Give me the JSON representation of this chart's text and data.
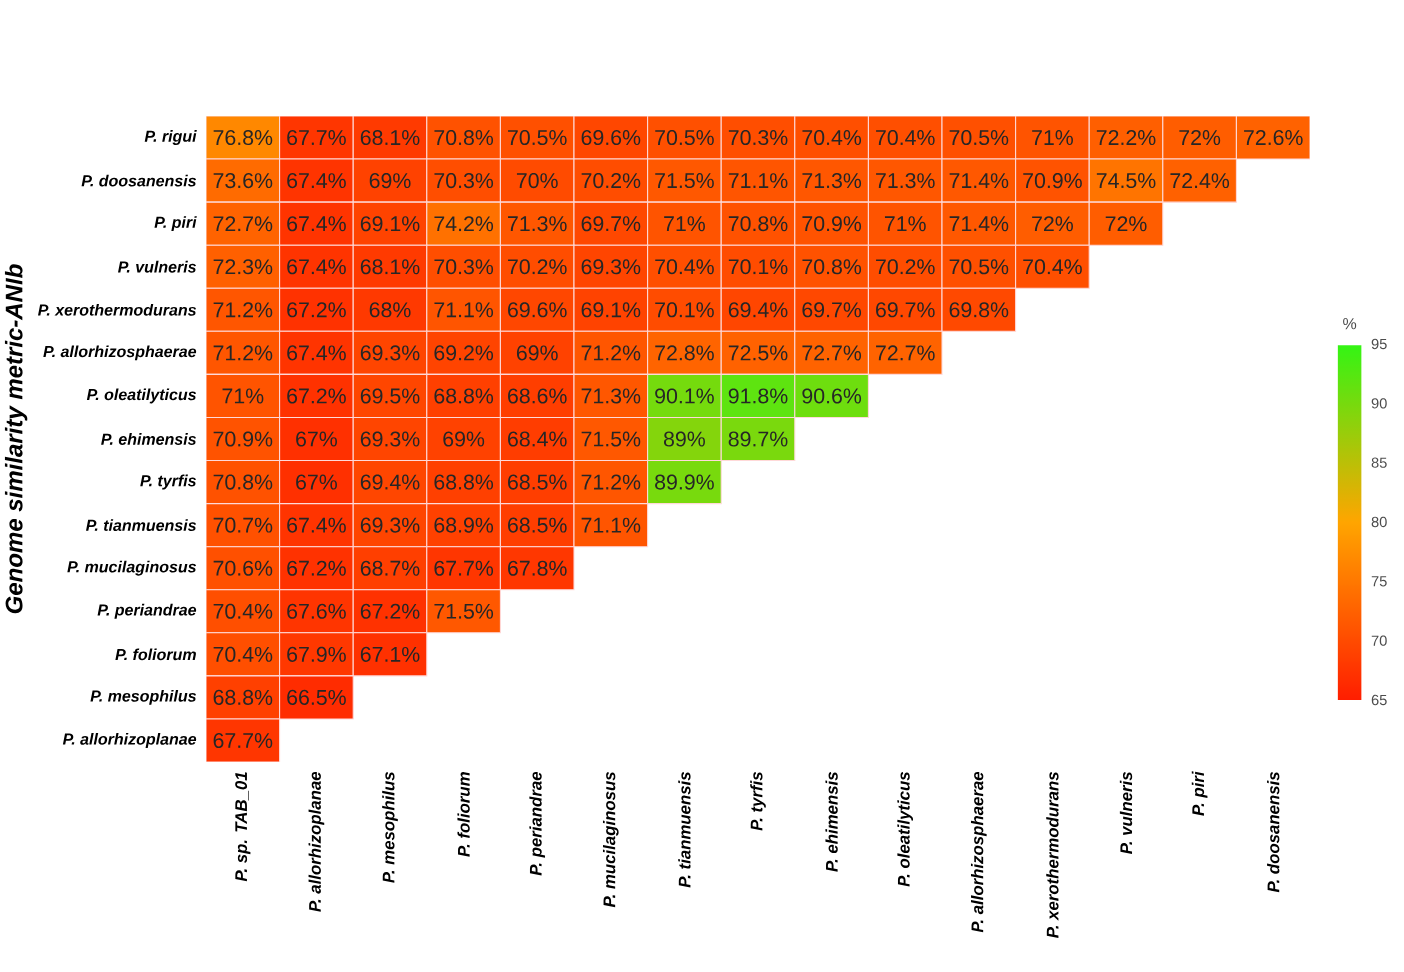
{
  "chart_data": {
    "type": "heatmap",
    "ylabel": "Genome similarity metric-ANIb",
    "clabel": "%",
    "categories": [
      "P. sp. TAB_01",
      "P. allorhizoplanae",
      "P. mesophilus",
      "P. foliorum",
      "P. periandrae",
      "P. mucilaginosus",
      "P. tianmuensis",
      "P. tyrfis",
      "P. ehimensis",
      "P. oleatilyticus",
      "P. allorhizosphaerae",
      "P. xerothermodurans",
      "P. vulneris",
      "P. piri",
      "P. doosanensis"
    ],
    "y_categories": [
      "P. rigui",
      "P. doosanensis",
      "P. piri",
      "P. vulneris",
      "P. xerothermodurans",
      "P. allorhizosphaerae",
      "P. oleatilyticus",
      "P. ehimensis",
      "P. tyrfis",
      "P. tianmuensis",
      "P. mucilaginosus",
      "P. periandrae",
      "P. foliorum",
      "P. mesophilus",
      "P. allorhizoplanae"
    ],
    "cells": [
      [
        76.8,
        67.7,
        68.1,
        70.8,
        70.5,
        69.6,
        70.5,
        70.3,
        70.4,
        70.4,
        70.5,
        71,
        72.2,
        72,
        72.6
      ],
      [
        73.6,
        67.4,
        69,
        70.3,
        70,
        70.2,
        71.5,
        71.1,
        71.3,
        71.3,
        71.4,
        70.9,
        74.5,
        72.4,
        null
      ],
      [
        72.7,
        67.4,
        69.1,
        74.2,
        71.3,
        69.7,
        71,
        70.8,
        70.9,
        71,
        71.4,
        72,
        72,
        null,
        null
      ],
      [
        72.3,
        67.4,
        68.1,
        70.3,
        70.2,
        69.3,
        70.4,
        70.1,
        70.8,
        70.2,
        70.5,
        70.4,
        null,
        null,
        null
      ],
      [
        71.2,
        67.2,
        68,
        71.1,
        69.6,
        69.1,
        70.1,
        69.4,
        69.7,
        69.7,
        69.8,
        null,
        null,
        null,
        null
      ],
      [
        71.2,
        67.4,
        69.3,
        69.2,
        69,
        71.2,
        72.8,
        72.5,
        72.7,
        72.7,
        null,
        null,
        null,
        null,
        null
      ],
      [
        71,
        67.2,
        69.5,
        68.8,
        68.6,
        71.3,
        90.1,
        91.8,
        90.6,
        null,
        null,
        null,
        null,
        null,
        null
      ],
      [
        70.9,
        67,
        69.3,
        69,
        68.4,
        71.5,
        89,
        89.7,
        null,
        null,
        null,
        null,
        null,
        null,
        null
      ],
      [
        70.8,
        67,
        69.4,
        68.8,
        68.5,
        71.2,
        89.9,
        null,
        null,
        null,
        null,
        null,
        null,
        null,
        null
      ],
      [
        70.7,
        67.4,
        69.3,
        68.9,
        68.5,
        71.1,
        null,
        null,
        null,
        null,
        null,
        null,
        null,
        null,
        null
      ],
      [
        70.6,
        67.2,
        68.7,
        67.7,
        67.8,
        null,
        null,
        null,
        null,
        null,
        null,
        null,
        null,
        null,
        null
      ],
      [
        70.4,
        67.6,
        67.2,
        71.5,
        null,
        null,
        null,
        null,
        null,
        null,
        null,
        null,
        null,
        null,
        null
      ],
      [
        70.4,
        67.9,
        67.1,
        null,
        null,
        null,
        null,
        null,
        null,
        null,
        null,
        null,
        null,
        null,
        null
      ],
      [
        68.8,
        66.5,
        null,
        null,
        null,
        null,
        null,
        null,
        null,
        null,
        null,
        null,
        null,
        null,
        null
      ],
      [
        67.7,
        null,
        null,
        null,
        null,
        null,
        null,
        null,
        null,
        null,
        null,
        null,
        null,
        null,
        null
      ]
    ],
    "cell_labels": [
      [
        "76.8%",
        "67.7%",
        "68.1%",
        "70.8%",
        "70.5%",
        "69.6%",
        "70.5%",
        "70.3%",
        "70.4%",
        "70.4%",
        "70.5%",
        "71%",
        "72.2%",
        "72%",
        "72.6%"
      ],
      [
        "73.6%",
        "67.4%",
        "69%",
        "70.3%",
        "70%",
        "70.2%",
        "71.5%",
        "71.1%",
        "71.3%",
        "71.3%",
        "71.4%",
        "70.9%",
        "74.5%",
        "72.4%",
        null
      ],
      [
        "72.7%",
        "67.4%",
        "69.1%",
        "74.2%",
        "71.3%",
        "69.7%",
        "71%",
        "70.8%",
        "70.9%",
        "71%",
        "71.4%",
        "72%",
        "72%",
        null,
        null
      ],
      [
        "72.3%",
        "67.4%",
        "68.1%",
        "70.3%",
        "70.2%",
        "69.3%",
        "70.4%",
        "70.1%",
        "70.8%",
        "70.2%",
        "70.5%",
        "70.4%",
        null,
        null,
        null
      ],
      [
        "71.2%",
        "67.2%",
        "68%",
        "71.1%",
        "69.6%",
        "69.1%",
        "70.1%",
        "69.4%",
        "69.7%",
        "69.7%",
        "69.8%",
        null,
        null,
        null,
        null
      ],
      [
        "71.2%",
        "67.4%",
        "69.3%",
        "69.2%",
        "69%",
        "71.2%",
        "72.8%",
        "72.5%",
        "72.7%",
        "72.7%",
        null,
        null,
        null,
        null,
        null
      ],
      [
        "71%",
        "67.2%",
        "69.5%",
        "68.8%",
        "68.6%",
        "71.3%",
        "90.1%",
        "91.8%",
        "90.6%",
        null,
        null,
        null,
        null,
        null,
        null
      ],
      [
        "70.9%",
        "67%",
        "69.3%",
        "69%",
        "68.4%",
        "71.5%",
        "89%",
        "89.7%",
        null,
        null,
        null,
        null,
        null,
        null,
        null
      ],
      [
        "70.8%",
        "67%",
        "69.4%",
        "68.8%",
        "68.5%",
        "71.2%",
        "89.9%",
        null,
        null,
        null,
        null,
        null,
        null,
        null,
        null
      ],
      [
        "70.7%",
        "67.4%",
        "69.3%",
        "68.9%",
        "68.5%",
        "71.1%",
        null,
        null,
        null,
        null,
        null,
        null,
        null,
        null,
        null
      ],
      [
        "70.6%",
        "67.2%",
        "68.7%",
        "67.7%",
        "67.8%",
        null,
        null,
        null,
        null,
        null,
        null,
        null,
        null,
        null,
        null
      ],
      [
        "70.4%",
        "67.6%",
        "67.2%",
        "71.5%",
        null,
        null,
        null,
        null,
        null,
        null,
        null,
        null,
        null,
        null,
        null
      ],
      [
        "70.4%",
        "67.9%",
        "67.1%",
        null,
        null,
        null,
        null,
        null,
        null,
        null,
        null,
        null,
        null,
        null,
        null
      ],
      [
        "68.8%",
        "66.5%",
        null,
        null,
        null,
        null,
        null,
        null,
        null,
        null,
        null,
        null,
        null,
        null,
        null
      ],
      [
        "67.7%",
        null,
        null,
        null,
        null,
        null,
        null,
        null,
        null,
        null,
        null,
        null,
        null,
        null,
        null
      ]
    ],
    "clim": [
      65,
      95
    ],
    "cticks": [
      65,
      70,
      75,
      80,
      85,
      90,
      95
    ]
  }
}
